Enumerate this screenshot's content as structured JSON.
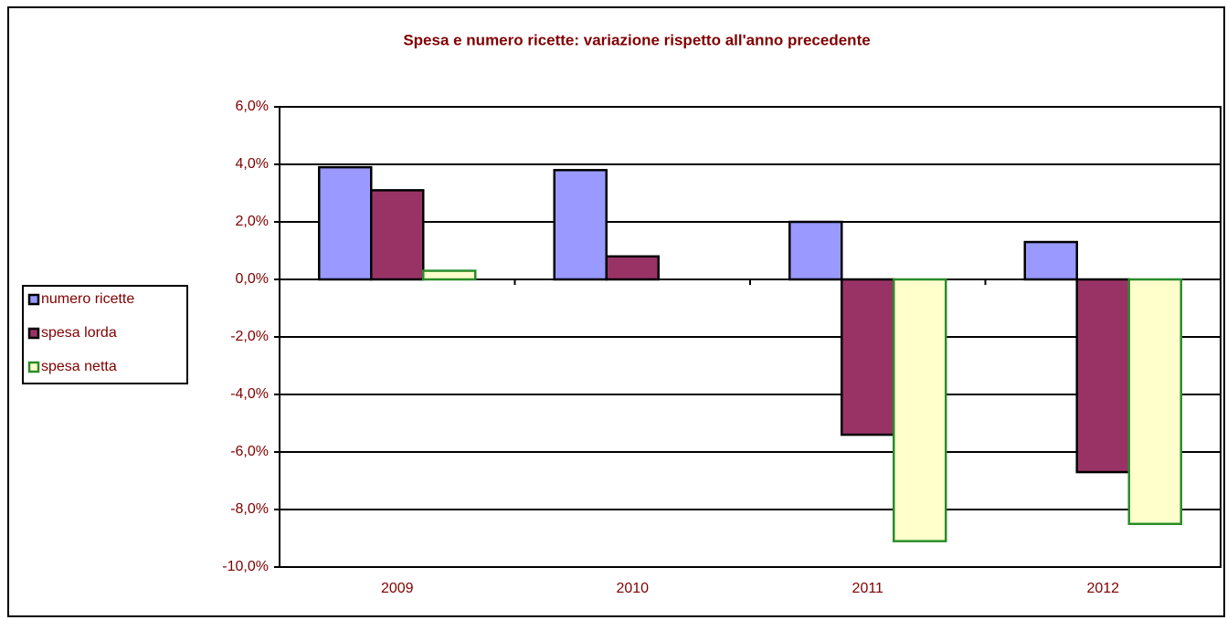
{
  "chart_data": {
    "type": "bar",
    "title": "Spesa e numero ricette: variazione rispetto all'anno precedente",
    "categories": [
      "2009",
      "2010",
      "2011",
      "2012"
    ],
    "series": [
      {
        "name": "numero ricette",
        "color": "#9999ff",
        "edgecolor": "#000000",
        "values": [
          3.9,
          3.8,
          2.0,
          1.3
        ]
      },
      {
        "name": "spesa lorda",
        "color": "#993366",
        "edgecolor": "#000000",
        "values": [
          3.1,
          0.8,
          -5.4,
          -6.7
        ]
      },
      {
        "name": "spesa netta",
        "color": "#ffffcc",
        "edgecolor": "#2a8c2a",
        "values": [
          0.3,
          0,
          -9.1,
          -8.5
        ]
      }
    ],
    "ylim": [
      -10,
      6
    ],
    "yticks": [
      {
        "value": -10,
        "label": "-10,0%"
      },
      {
        "value": -8,
        "label": "-8,0%"
      },
      {
        "value": -6,
        "label": "-6,0%"
      },
      {
        "value": -4,
        "label": "-4,0%"
      },
      {
        "value": -2,
        "label": "-2,0%"
      },
      {
        "value": 0,
        "label": "0,0%"
      },
      {
        "value": 2,
        "label": "2,0%"
      },
      {
        "value": 4,
        "label": "4,0%"
      },
      {
        "value": 6,
        "label": "6,0%"
      }
    ],
    "grid": true,
    "legend": "left"
  }
}
